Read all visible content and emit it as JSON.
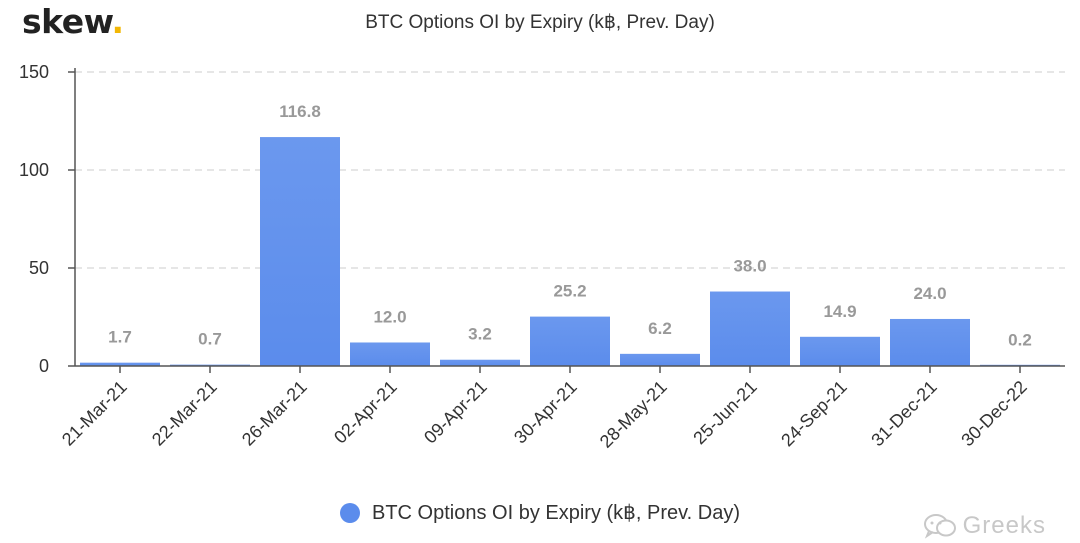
{
  "brand": {
    "name": "skew",
    "dot": "."
  },
  "watermark": {
    "text": "Greeks",
    "icon": "wechat-icon"
  },
  "colors": {
    "bar": "#5b8cec",
    "bar_top": "#6b98ee",
    "axis": "#555555",
    "grid": "#dddddd",
    "brand_dot": "#f2b705"
  },
  "chart_data": {
    "type": "bar",
    "title": "BTC Options OI by Expiry (k฿, Prev. Day)",
    "categories": [
      "21-Mar-21",
      "22-Mar-21",
      "26-Mar-21",
      "02-Apr-21",
      "09-Apr-21",
      "30-Apr-21",
      "28-May-21",
      "25-Jun-21",
      "24-Sep-21",
      "31-Dec-21",
      "30-Dec-22"
    ],
    "series": [
      {
        "name": "BTC Options OI by Expiry (k฿, Prev. Day)",
        "values": [
          1.7,
          0.7,
          116.8,
          12.0,
          3.2,
          25.2,
          6.2,
          38.0,
          14.9,
          24.0,
          0.2
        ]
      }
    ],
    "data_labels": [
      "1.7",
      "0.7",
      "116.8",
      "12.0",
      "3.2",
      "25.2",
      "6.2",
      "38.0",
      "14.9",
      "24.0",
      "0.2"
    ],
    "yticks": [
      "0",
      "50",
      "100",
      "150"
    ],
    "ylim": [
      0,
      150
    ],
    "xlabel": "",
    "ylabel": "",
    "grid": true,
    "legend": "bottom-center"
  }
}
